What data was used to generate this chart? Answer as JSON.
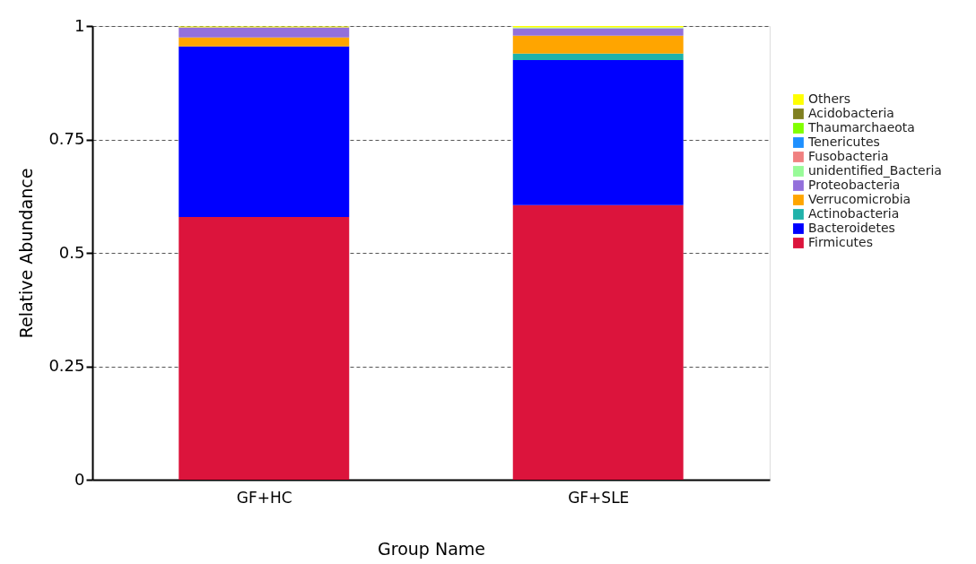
{
  "chart_data": {
    "type": "bar",
    "stacked": true,
    "xlabel": "Group Name",
    "ylabel": "Relative Abundance",
    "categories": [
      "GF+HC",
      "GF+SLE"
    ],
    "series": [
      {
        "name": "Firmicutes",
        "color": "#dc143c",
        "values": [
          0.579,
          0.605
        ]
      },
      {
        "name": "Bacteroidetes",
        "color": "#0000ff",
        "values": [
          0.376,
          0.32
        ]
      },
      {
        "name": "Actinobacteria",
        "color": "#20b2aa",
        "values": [
          null,
          0.014
        ]
      },
      {
        "name": "Verrucomicrobia",
        "color": "#ffa500",
        "values": [
          0.02,
          0.04
        ]
      },
      {
        "name": "Proteobacteria",
        "color": "#9370db",
        "values": [
          0.022,
          0.016
        ]
      },
      {
        "name": "unidentified_Bacteria",
        "color": "#98fb98",
        "values": [
          0.0,
          0.002
        ]
      },
      {
        "name": "Fusobacteria",
        "color": "#f08080",
        "values": [
          0.0,
          0.0
        ]
      },
      {
        "name": "Tenericutes",
        "color": "#1e90ff",
        "values": [
          0.0,
          0.0
        ]
      },
      {
        "name": "Thaumarchaeota",
        "color": "#80ff00",
        "values": [
          0.0,
          0.0
        ]
      },
      {
        "name": "Acidobacteria",
        "color": "#808020",
        "values": [
          0.0,
          0.0
        ]
      },
      {
        "name": "Others",
        "color": "#ffff00",
        "values": [
          0.002,
          0.003
        ]
      }
    ],
    "ylim": [
      0,
      1
    ],
    "yticks": [
      0,
      0.25,
      0.5,
      0.75,
      1
    ],
    "grid": "y",
    "legend": "right"
  }
}
